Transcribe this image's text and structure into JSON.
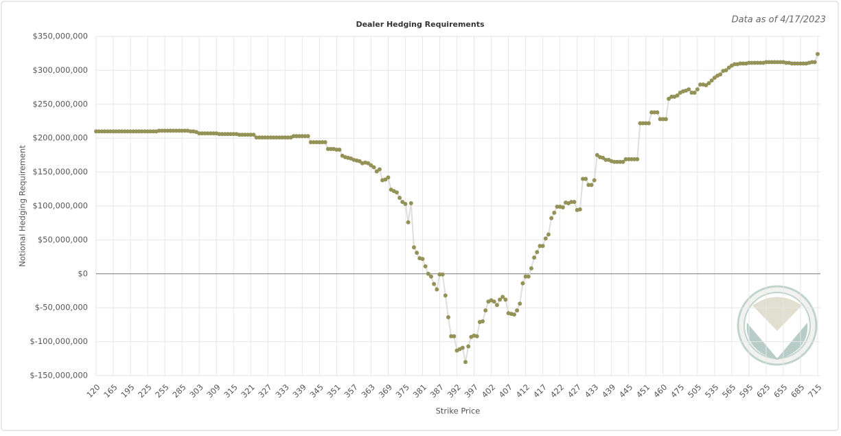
{
  "chart_data": {
    "type": "line",
    "title": "Dealer Hedging Requirements",
    "subtitle": "Data as of 4/17/2023",
    "x_label": "Strike Price",
    "y_label": "Notional Hedging Requirement",
    "color": "#959258",
    "line_color": "#dedede",
    "grid": true,
    "ylim": [
      -150000000,
      350000000
    ],
    "yticks": [
      {
        "value": -150000000,
        "label": "$-150,000,000"
      },
      {
        "value": -100000000,
        "label": "$-100,000,000"
      },
      {
        "value": -50000000,
        "label": "$-50,000,000"
      },
      {
        "value": 0,
        "label": "$0"
      },
      {
        "value": 50000000,
        "label": "$50,000,000"
      },
      {
        "value": 100000000,
        "label": "$100,000,000"
      },
      {
        "value": 150000000,
        "label": "$150,000,000"
      },
      {
        "value": 200000000,
        "label": "$200,000,000"
      },
      {
        "value": 250000000,
        "label": "$250,000,000"
      },
      {
        "value": 300000000,
        "label": "$300,000,000"
      },
      {
        "value": 350000000,
        "label": "$350,000,000"
      }
    ],
    "categories": [
      "120",
      null,
      null,
      null,
      null,
      null,
      "165",
      null,
      null,
      null,
      null,
      null,
      "195",
      null,
      null,
      null,
      null,
      null,
      "225",
      null,
      null,
      null,
      null,
      null,
      "255",
      null,
      null,
      null,
      null,
      null,
      "285",
      null,
      null,
      null,
      null,
      null,
      "303",
      null,
      null,
      null,
      null,
      null,
      "309",
      null,
      null,
      null,
      null,
      null,
      "315",
      null,
      null,
      null,
      null,
      null,
      "321",
      null,
      null,
      null,
      null,
      null,
      "327",
      null,
      null,
      null,
      null,
      null,
      "333",
      null,
      null,
      null,
      null,
      null,
      "339",
      null,
      null,
      null,
      null,
      null,
      "345",
      null,
      null,
      null,
      null,
      null,
      "351",
      null,
      null,
      null,
      null,
      null,
      "357",
      null,
      null,
      null,
      null,
      null,
      "363",
      null,
      null,
      null,
      null,
      null,
      "369",
      null,
      null,
      null,
      null,
      null,
      "375",
      null,
      null,
      null,
      null,
      null,
      "381",
      null,
      null,
      null,
      null,
      null,
      "387",
      null,
      null,
      null,
      null,
      null,
      "392",
      null,
      null,
      null,
      null,
      null,
      "397",
      null,
      null,
      null,
      null,
      null,
      "402",
      null,
      null,
      null,
      null,
      null,
      "407",
      null,
      null,
      null,
      null,
      null,
      "412",
      null,
      null,
      null,
      null,
      null,
      "417",
      null,
      null,
      null,
      null,
      null,
      "422",
      null,
      null,
      null,
      null,
      null,
      "427",
      null,
      null,
      null,
      null,
      null,
      "433",
      null,
      null,
      null,
      null,
      null,
      "439",
      null,
      null,
      null,
      null,
      null,
      "445",
      null,
      null,
      null,
      null,
      null,
      "451",
      null,
      null,
      null,
      null,
      null,
      "460",
      null,
      null,
      null,
      null,
      null,
      "475",
      null,
      null,
      null,
      null,
      null,
      "505",
      null,
      null,
      null,
      null,
      null,
      "535",
      null,
      null,
      null,
      null,
      null,
      "565",
      null,
      null,
      null,
      null,
      null,
      "595",
      null,
      null,
      null,
      null,
      null,
      "625",
      null,
      null,
      null,
      null,
      null,
      "655",
      null,
      null,
      null,
      null,
      null,
      "685",
      null,
      null,
      null,
      null,
      null,
      "715"
    ],
    "values": [
      210000000,
      210000000,
      210000000,
      210000000,
      210000000,
      210000000,
      210000000,
      210000000,
      210000000,
      210000000,
      210000000,
      210000000,
      210000000,
      210000000,
      210000000,
      210000000,
      210000000,
      210000000,
      210000000,
      210000000,
      210000000,
      210000000,
      211000000,
      211000000,
      211000000,
      211000000,
      211000000,
      211000000,
      211000000,
      211000000,
      211000000,
      211000000,
      211000000,
      210000000,
      210000000,
      209000000,
      207000000,
      207000000,
      207000000,
      207000000,
      207000000,
      207000000,
      207000000,
      206000000,
      206000000,
      206000000,
      206000000,
      206000000,
      206000000,
      206000000,
      205000000,
      205000000,
      205000000,
      205000000,
      205000000,
      205000000,
      201000000,
      201000000,
      201000000,
      201000000,
      201000000,
      201000000,
      201000000,
      201000000,
      201000000,
      201000000,
      201000000,
      201000000,
      201000000,
      203000000,
      203000000,
      203000000,
      203000000,
      203000000,
      203000000,
      194000000,
      194000000,
      194000000,
      194000000,
      194000000,
      194000000,
      184000000,
      184000000,
      184000000,
      183000000,
      183000000,
      174000000,
      172000000,
      171000000,
      170000000,
      168000000,
      167000000,
      166000000,
      163000000,
      164000000,
      163000000,
      160000000,
      157000000,
      151000000,
      154000000,
      138000000,
      139000000,
      142000000,
      124000000,
      122000000,
      120000000,
      112000000,
      106000000,
      103000000,
      76000000,
      104000000,
      39000000,
      31000000,
      23000000,
      22000000,
      11000000,
      0,
      -4000000,
      -15000000,
      -23000000,
      -1000000,
      -1000000,
      -32000000,
      -64000000,
      -92000000,
      -92000000,
      -113000000,
      -111000000,
      -109000000,
      -130000000,
      -107000000,
      -93000000,
      -91000000,
      -92000000,
      -71000000,
      -70000000,
      -54000000,
      -41000000,
      -39000000,
      -41000000,
      -46000000,
      -38000000,
      -34000000,
      -38000000,
      -58000000,
      -59000000,
      -60000000,
      -54000000,
      -44000000,
      -14000000,
      -4000000,
      -4000000,
      8000000,
      24000000,
      32000000,
      41000000,
      41000000,
      52000000,
      58000000,
      82000000,
      90000000,
      99000000,
      99000000,
      98000000,
      105000000,
      104000000,
      106000000,
      106000000,
      94000000,
      95000000,
      140000000,
      140000000,
      131000000,
      131000000,
      138000000,
      175000000,
      172000000,
      171000000,
      168000000,
      168000000,
      166000000,
      165000000,
      165000000,
      165000000,
      165000000,
      169000000,
      169000000,
      169000000,
      169000000,
      169000000,
      222000000,
      222000000,
      222000000,
      222000000,
      238000000,
      238000000,
      238000000,
      228000000,
      228000000,
      228000000,
      258000000,
      261000000,
      261000000,
      263000000,
      267000000,
      269000000,
      270000000,
      272000000,
      267000000,
      267000000,
      272000000,
      279000000,
      279000000,
      278000000,
      281000000,
      285000000,
      289000000,
      292000000,
      294000000,
      299000000,
      300000000,
      304000000,
      307000000,
      309000000,
      309000000,
      310000000,
      310000000,
      310000000,
      311000000,
      311000000,
      311000000,
      311000000,
      311000000,
      311000000,
      312000000,
      312000000,
      312000000,
      312000000,
      312000000,
      312000000,
      312000000,
      311000000,
      311000000,
      310000000,
      310000000,
      310000000,
      310000000,
      310000000,
      310000000,
      311000000,
      312000000,
      312000000,
      324000000
    ]
  }
}
